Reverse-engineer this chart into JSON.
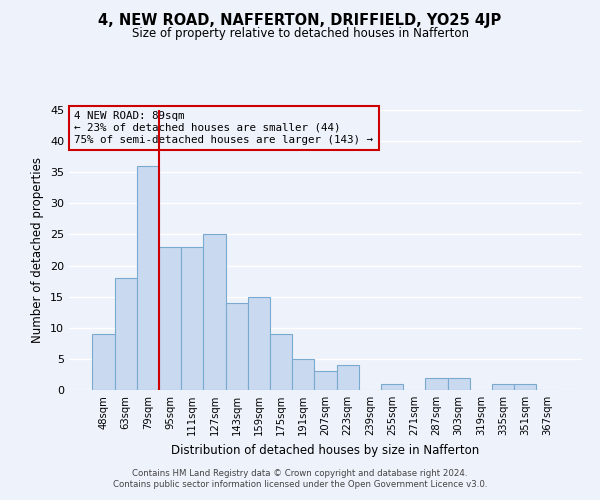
{
  "title": "4, NEW ROAD, NAFFERTON, DRIFFIELD, YO25 4JP",
  "subtitle": "Size of property relative to detached houses in Nafferton",
  "xlabel": "Distribution of detached houses by size in Nafferton",
  "ylabel": "Number of detached properties",
  "bar_labels": [
    "48sqm",
    "63sqm",
    "79sqm",
    "95sqm",
    "111sqm",
    "127sqm",
    "143sqm",
    "159sqm",
    "175sqm",
    "191sqm",
    "207sqm",
    "223sqm",
    "239sqm",
    "255sqm",
    "271sqm",
    "287sqm",
    "303sqm",
    "319sqm",
    "335sqm",
    "351sqm",
    "367sqm"
  ],
  "bar_values": [
    9,
    18,
    36,
    23,
    23,
    25,
    14,
    15,
    9,
    5,
    3,
    4,
    0,
    1,
    0,
    2,
    2,
    0,
    1,
    1,
    0
  ],
  "bar_color": "#c9d9f0",
  "bar_edge_color": "#7aaad0",
  "ylim": [
    0,
    45
  ],
  "yticks": [
    0,
    5,
    10,
    15,
    20,
    25,
    30,
    35,
    40,
    45
  ],
  "vline_color": "#cc0000",
  "annotation_title": "4 NEW ROAD: 89sqm",
  "annotation_line1": "← 23% of detached houses are smaller (44)",
  "annotation_line2": "75% of semi-detached houses are larger (143) →",
  "annotation_box_color": "#cc0000",
  "footer_line1": "Contains HM Land Registry data © Crown copyright and database right 2024.",
  "footer_line2": "Contains public sector information licensed under the Open Government Licence v3.0.",
  "background_color": "#eef2fb",
  "grid_color": "#ffffff"
}
